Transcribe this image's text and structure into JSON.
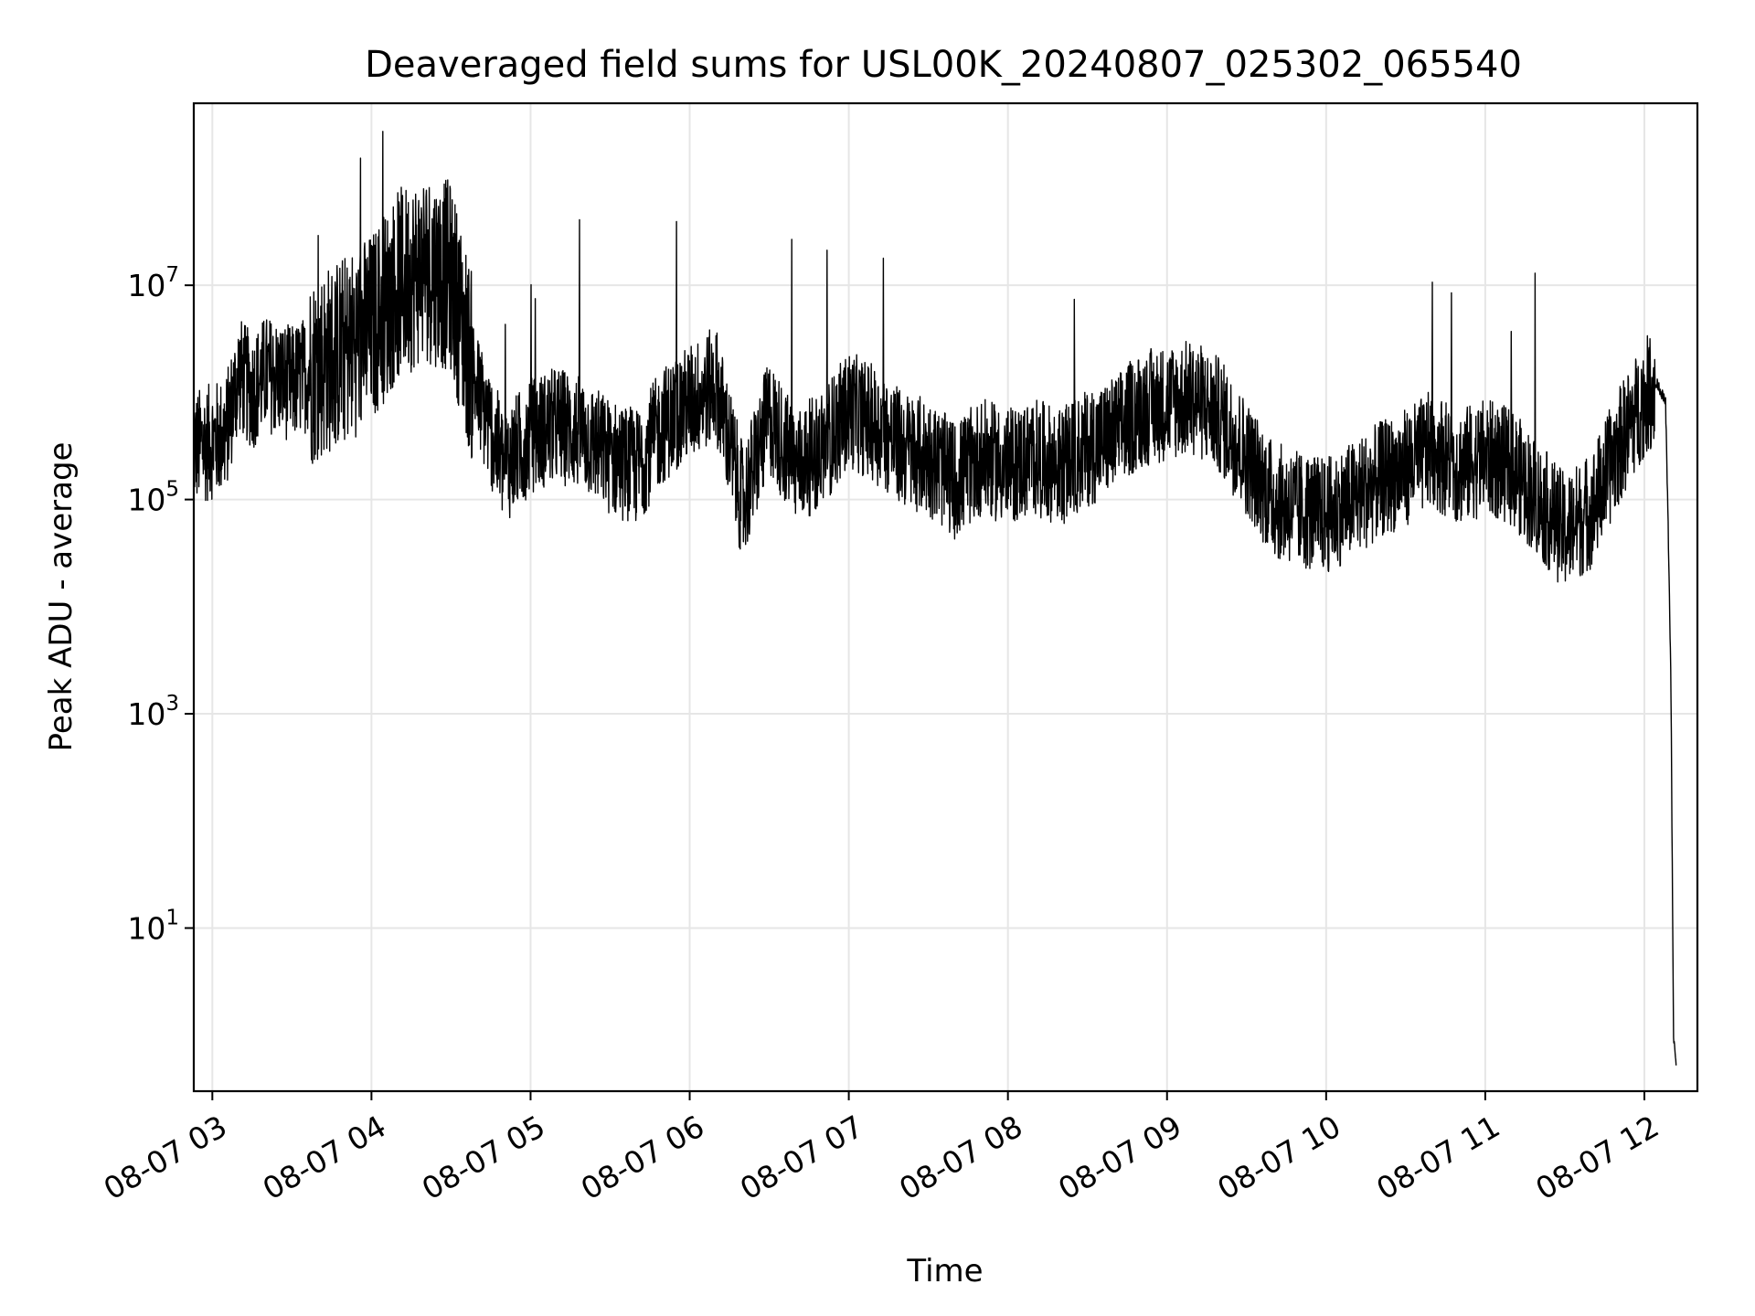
{
  "chart_data": {
    "type": "line",
    "title": "Deaveraged field sums for USL00K_20240807_025302_065540",
    "xlabel": "Time",
    "ylabel": "Peak ADU - average",
    "yscale": "log",
    "xlim": [
      "08-07 02:53",
      "08-07 12:20"
    ],
    "ylim": [
      0.3,
      500000000
    ],
    "grid": true,
    "x_ticks": [
      "08-07 03",
      "08-07 04",
      "08-07 05",
      "08-07 06",
      "08-07 07",
      "08-07 08",
      "08-07 09",
      "08-07 10",
      "08-07 11",
      "08-07 12"
    ],
    "y_ticks": [
      {
        "value": 10,
        "base": "10",
        "exp": "1"
      },
      {
        "value": 1000,
        "base": "10",
        "exp": "3"
      },
      {
        "value": 100000,
        "base": "10",
        "exp": "5"
      },
      {
        "value": 10000000,
        "base": "10",
        "exp": "7"
      }
    ],
    "series": [
      {
        "color": "#000000",
        "x": [
          "08-07 02:53",
          "08-07 03:00",
          "08-07 03:05",
          "08-07 03:10",
          "08-07 03:15",
          "08-07 03:20",
          "08-07 03:30",
          "08-07 03:40",
          "08-07 03:50",
          "08-07 04:00",
          "08-07 04:10",
          "08-07 04:20",
          "08-07 04:30",
          "08-07 04:40",
          "08-07 04:50",
          "08-07 05:00",
          "08-07 05:10",
          "08-07 05:20",
          "08-07 05:30",
          "08-07 05:40",
          "08-07 05:50",
          "08-07 06:00",
          "08-07 06:10",
          "08-07 06:20",
          "08-07 06:30",
          "08-07 06:40",
          "08-07 06:50",
          "08-07 07:00",
          "08-07 07:10",
          "08-07 07:20",
          "08-07 07:30",
          "08-07 07:40",
          "08-07 07:50",
          "08-07 08:00",
          "08-07 08:10",
          "08-07 08:20",
          "08-07 08:30",
          "08-07 08:40",
          "08-07 08:50",
          "08-07 09:00",
          "08-07 09:10",
          "08-07 09:20",
          "08-07 09:30",
          "08-07 09:40",
          "08-07 09:50",
          "08-07 10:00",
          "08-07 10:10",
          "08-07 10:20",
          "08-07 10:30",
          "08-07 10:40",
          "08-07 10:50",
          "08-07 11:00",
          "08-07 11:10",
          "08-07 11:20",
          "08-07 11:30",
          "08-07 11:40",
          "08-07 11:50",
          "08-07 12:00",
          "08-07 12:05",
          "08-07 12:08",
          "08-07 12:09",
          "08-07 12:10",
          "08-07 12:11",
          "08-07 12:12"
        ],
        "y": [
          300000,
          350000,
          400000,
          1500000,
          1000000,
          1500000,
          1200000,
          1800000,
          2500000,
          4000000,
          10000000,
          15000000,
          12000000,
          1000000,
          200000,
          400000,
          500000,
          400000,
          250000,
          200000,
          500000,
          800000,
          1200000,
          90000,
          600000,
          200000,
          300000,
          700000,
          500000,
          300000,
          250000,
          150000,
          250000,
          200000,
          250000,
          200000,
          300000,
          400000,
          700000,
          800000,
          900000,
          600000,
          250000,
          100000,
          80000,
          70000,
          100000,
          150000,
          200000,
          300000,
          200000,
          250000,
          200000,
          100000,
          50000,
          80000,
          300000,
          900000,
          1200000,
          800000,
          50000,
          2000,
          1,
          0.5
        ]
      }
    ]
  }
}
